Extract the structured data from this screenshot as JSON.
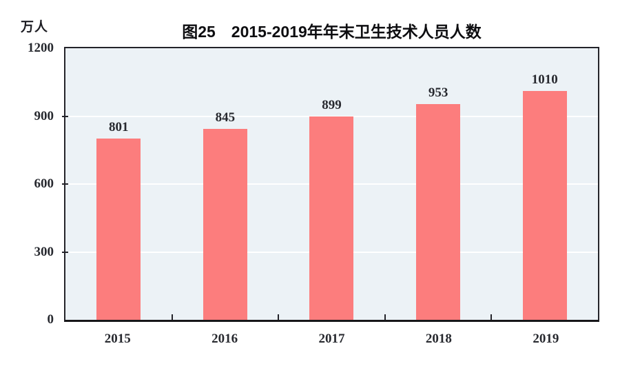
{
  "chart_data": {
    "type": "bar",
    "title": "图25　2015-2019年年末卫生技术人员人数",
    "unit_label": "万人",
    "categories": [
      "2015",
      "2016",
      "2017",
      "2018",
      "2019"
    ],
    "values": [
      801,
      845,
      899,
      953,
      1010
    ],
    "data_labels": [
      "801",
      "845",
      "899",
      "953",
      "1010"
    ],
    "xlabel": "",
    "ylabel": "万人",
    "ylim": [
      0,
      1200
    ],
    "yticks": [
      0,
      300,
      600,
      900,
      1200
    ],
    "grid": "horizontal",
    "legend": "none"
  },
  "colors": {
    "bar_fill": "#FC7D7D",
    "plot_background": "#ECF2F6",
    "gridline": "#FFFFFF",
    "frame": "#232329",
    "bottom_axis": "#161619",
    "tick_mark": "#232329",
    "text": "#27292F",
    "title_text": "#0D0D10",
    "page_background": "#FFFFFF"
  }
}
